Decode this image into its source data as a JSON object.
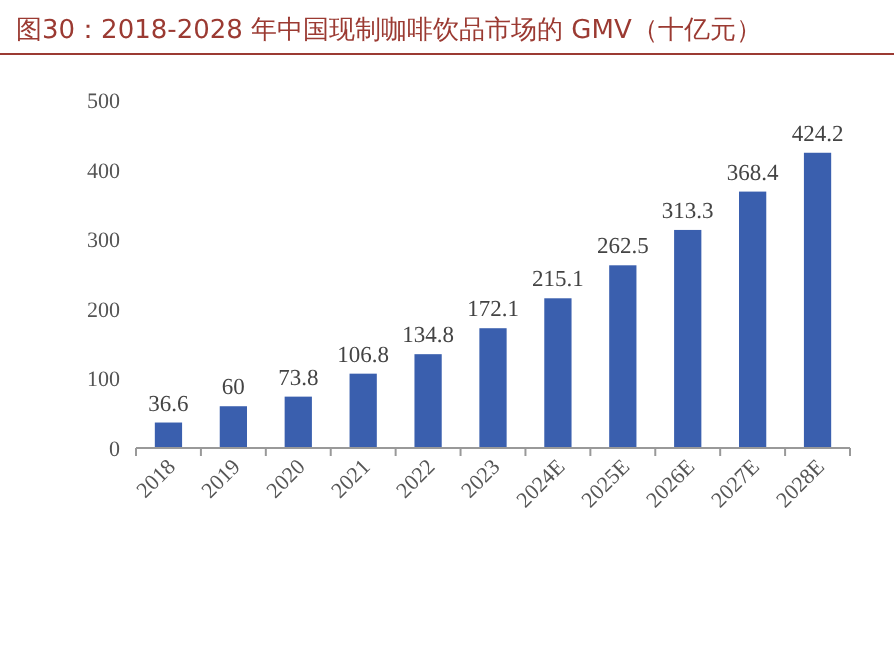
{
  "chart_data": {
    "type": "bar",
    "title": "图30：2018-2028 年中国现制咖啡饮品市场的 GMV（十亿元）",
    "categories": [
      "2018",
      "2019",
      "2020",
      "2021",
      "2022",
      "2023",
      "2024E",
      "2025E",
      "2026E",
      "2027E",
      "2028E"
    ],
    "values": [
      36.6,
      60,
      73.8,
      106.8,
      134.8,
      172.1,
      215.1,
      262.5,
      313.3,
      368.4,
      424.2
    ],
    "color": "#3a5fae",
    "ylim": [
      0,
      500
    ],
    "yticks": [
      0,
      100,
      200,
      300,
      400,
      500
    ],
    "data_labels": true
  }
}
